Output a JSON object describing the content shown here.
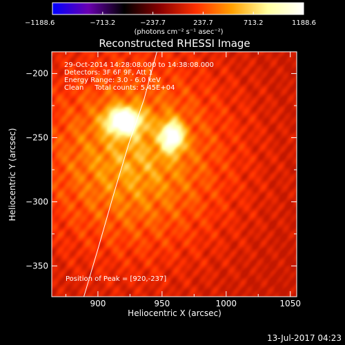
{
  "chart_data": {
    "type": "heatmap",
    "title": "Reconstructed RHESSI Image",
    "xlabel": "Heliocentric X (arcsec)",
    "ylabel": "Heliocentric Y (arcsec)",
    "xlim": [
      864,
      1055
    ],
    "ylim": [
      -374,
      -183
    ],
    "x_ticks": [
      900,
      950,
      1000,
      1050
    ],
    "y_ticks": [
      -200,
      -250,
      -300,
      -350
    ],
    "colorbar": {
      "range": [
        -1188.6,
        1188.6
      ],
      "tick_values": [
        -1188.6,
        -713.2,
        -237.7,
        237.7,
        713.2,
        1188.6
      ],
      "tick_labels": [
        "−1188.6",
        "−713.2",
        "−237.7",
        "237.7",
        "713.2",
        "1188.6"
      ],
      "unit_label": "(photons cm⁻² s⁻¹ asec⁻²)",
      "colormap": [
        "#0000ff",
        "#6a00b0",
        "#000000",
        "#8a0000",
        "#ff3000",
        "#ffa000",
        "#ffffa0",
        "#ffffff"
      ]
    },
    "annotations": [
      "29-Oct-2014 14:28:08.000 to 14:38:08.000",
      "Detectors: 3F 6F 9F, Att 1",
      "Energy Range: 3.0 - 6.0 keV",
      "Clean     Total counts: 5.45E+04"
    ],
    "peak_label": "Position of Peak = [920,-237]",
    "sources": [
      {
        "x": 920,
        "y": -237,
        "intensity": 1188.6,
        "sx": 9,
        "sy": 7
      },
      {
        "x": 958,
        "y": -249,
        "intensity": 1000,
        "sx": 6,
        "sy": 8
      }
    ],
    "diffuse": {
      "x": 928,
      "y": -265,
      "intensity": 560
    },
    "limb": [
      [
        889,
        -374
      ],
      [
        900,
        -337
      ],
      [
        912,
        -295
      ],
      [
        924,
        -255
      ],
      [
        936,
        -220
      ],
      [
        946,
        -183
      ]
    ],
    "timestamp": "13-Jul-2017 04:23"
  }
}
